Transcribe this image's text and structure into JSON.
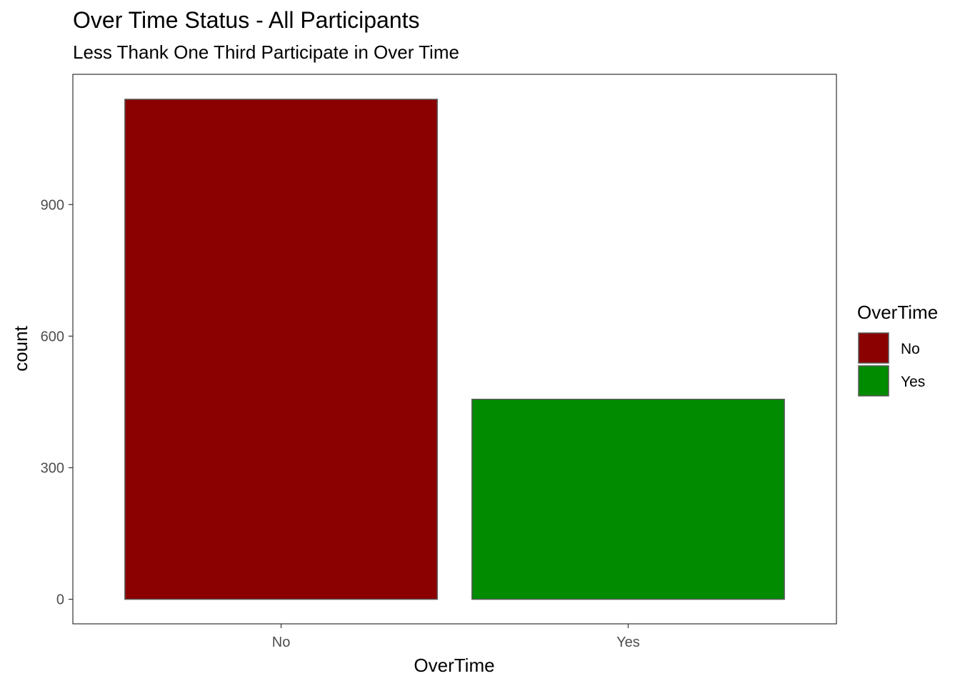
{
  "chart_data": {
    "type": "bar",
    "title": "Over Time Status - All Participants",
    "subtitle": "Less Thank One Third Participate in Over Time",
    "xlabel": "OverTime",
    "ylabel": "count",
    "categories": [
      "No",
      "Yes"
    ],
    "values": [
      1140,
      456
    ],
    "colors": [
      "#8b0000",
      "#008b00"
    ],
    "bar_outline": "#595959",
    "ylim": [
      -56,
      1197
    ],
    "yticks": [
      0,
      300,
      600,
      900
    ],
    "grid": false,
    "legend": {
      "title": "OverTime",
      "position": "right",
      "items": [
        {
          "label": "No",
          "color": "#8b0000"
        },
        {
          "label": "Yes",
          "color": "#008b00"
        }
      ]
    }
  }
}
